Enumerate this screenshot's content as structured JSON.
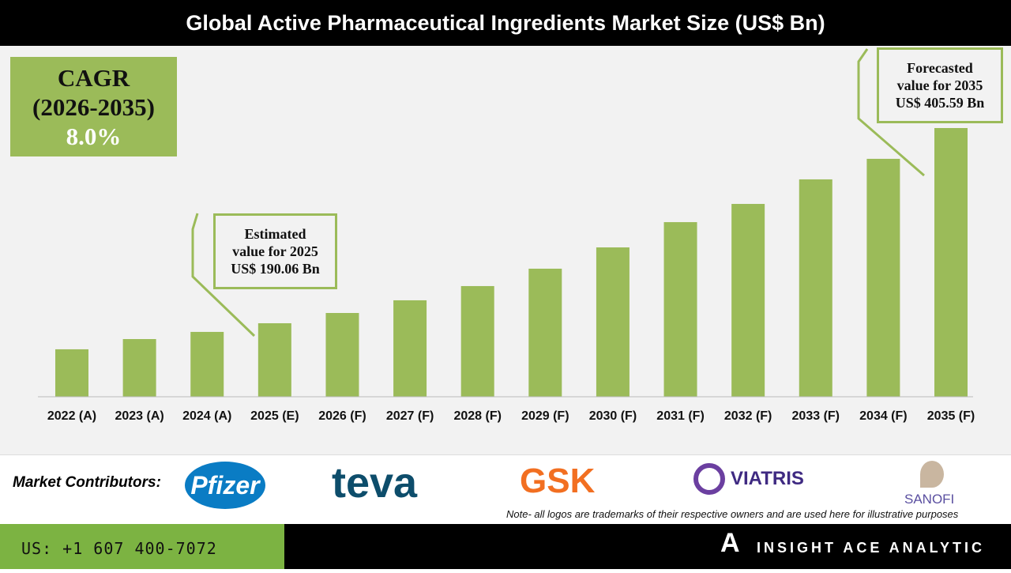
{
  "title": "Global Active Pharmaceutical Ingredients Market Size (US$ Bn)",
  "cagr": {
    "label": "CAGR",
    "period": "(2026-2035)",
    "value": "8.0%"
  },
  "callouts": {
    "estimated": [
      "Estimated",
      "value for 2025",
      "US$ 190.06 Bn"
    ],
    "forecasted": [
      "Forecasted",
      "value for 2035",
      "US$ 405.59 Bn"
    ]
  },
  "chart_data": {
    "type": "bar",
    "title": "Global Active Pharmaceutical Ingredients Market Size (US$ Bn)",
    "categories": [
      "2022 (A)",
      "2023 (A)",
      "2024 (A)",
      "2025 (E)",
      "2026 (F)",
      "2027 (F)",
      "2028 (F)",
      "2029 (F)",
      "2030 (F)",
      "2031 (F)",
      "2032 (F)",
      "2033 (F)",
      "2034 (F)",
      "2035 (F)"
    ],
    "values": [
      161.3,
      172.6,
      180.5,
      190.06,
      201.4,
      215.4,
      231.1,
      250.3,
      273.8,
      301.7,
      321.8,
      348.9,
      371.6,
      405.59
    ],
    "ylim": [
      108.9,
      420
    ],
    "grid": false,
    "color": "#9bbb59"
  },
  "footer": {
    "contributors_label": "Market Contributors:",
    "logos": [
      "Pfizer",
      "teva",
      "GSK",
      "VIATRIS",
      "SANOFI"
    ],
    "note": "Note- all logos are trademarks of their respective owners and are used here for illustrative purposes",
    "phone": "US: +1 607 400-7072",
    "brand": "INSIGHT ACE ANALYTIC"
  }
}
